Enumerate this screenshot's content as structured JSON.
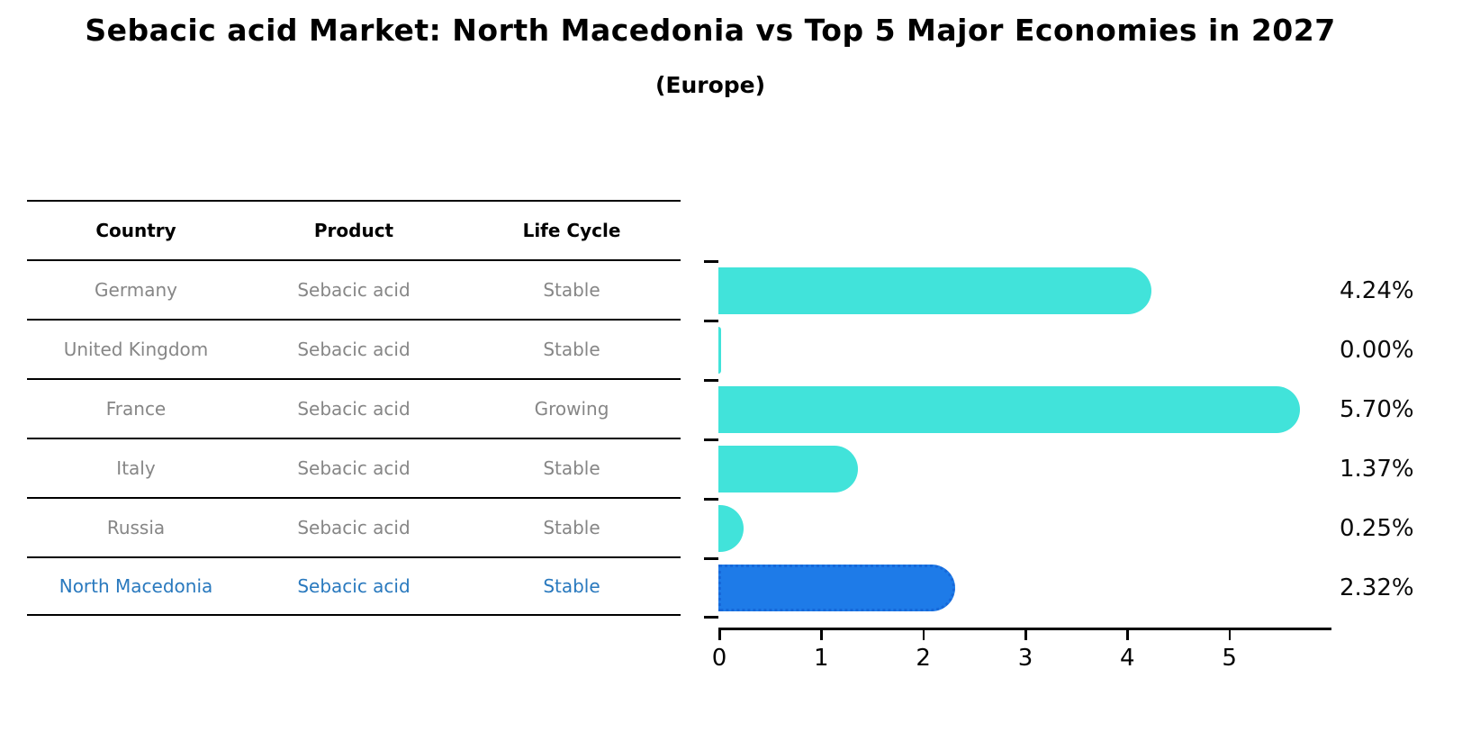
{
  "title": "Sebacic acid Market: North Macedonia vs Top 5 Major Economies in 2027",
  "subtitle": "(Europe)",
  "table": {
    "headers": [
      "Country",
      "Product",
      "Life Cycle"
    ],
    "rows": [
      {
        "country": "Germany",
        "product": "Sebacic acid",
        "life_cycle": "Stable",
        "highlight": false
      },
      {
        "country": "United Kingdom",
        "product": "Sebacic acid",
        "life_cycle": "Stable",
        "highlight": false
      },
      {
        "country": "France",
        "product": "Sebacic acid",
        "life_cycle": "Growing",
        "highlight": false
      },
      {
        "country": "Italy",
        "product": "Sebacic acid",
        "life_cycle": "Stable",
        "highlight": false
      },
      {
        "country": "Russia",
        "product": "Sebacic acid",
        "life_cycle": "Stable",
        "highlight": true
      },
      {
        "country": "North Macedonia",
        "product": "Sebacic acid",
        "life_cycle": "Stable",
        "highlight": true
      }
    ]
  },
  "chart_data": {
    "type": "bar",
    "orientation": "horizontal",
    "title": "Sebacic acid Market: North Macedonia vs Top 5 Major Economies in 2027 (Europe)",
    "categories": [
      "Germany",
      "United Kingdom",
      "France",
      "Italy",
      "Russia",
      "North Macedonia"
    ],
    "values": [
      4.24,
      0.0,
      5.7,
      1.37,
      0.25,
      2.32
    ],
    "value_labels": [
      "4.24%",
      "0.00%",
      "5.70%",
      "1.37%",
      "0.25%",
      "2.32%"
    ],
    "highlight_index": 5,
    "xlim": [
      0,
      6
    ],
    "xticks": [
      0,
      1,
      2,
      3,
      4,
      5
    ],
    "grid": false,
    "legend": "none",
    "bar_color": "#41E3DA",
    "highlight_color": "#1E7BE8",
    "highlight_text_color": "#2979BE"
  }
}
